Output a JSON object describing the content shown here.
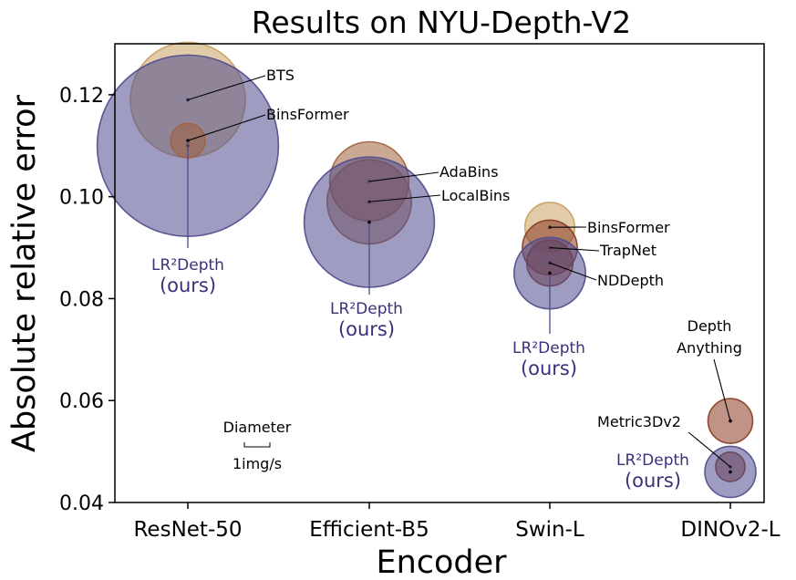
{
  "chart_data": {
    "type": "scatter",
    "title": "Results on NYU-Depth-V2",
    "xlabel": "Encoder",
    "ylabel": "Absolute relative error",
    "categories": [
      "ResNet-50",
      "Efficient-B5",
      "Swin-L",
      "DINOv2-L"
    ],
    "ylim": [
      0.04,
      0.13
    ],
    "yticks": [
      0.04,
      0.06,
      0.08,
      0.1,
      0.12
    ],
    "ytick_labels": [
      "0.04",
      "0.06",
      "0.08",
      "0.10",
      "0.12"
    ],
    "grid": false,
    "size_legend": {
      "title": "Diameter",
      "unit_label": "1img/s"
    },
    "colors": {
      "tan": "#c8a060",
      "brown": "#a0603c",
      "darkbrown": "#8a3a22",
      "ours": "#4e4a8c",
      "ours_text": "#3d2f7a"
    },
    "points": [
      {
        "label": "BTS",
        "encoder": "ResNet-50",
        "value": 0.119,
        "speed": 9.0,
        "color": "tan"
      },
      {
        "label": "LR²Depth",
        "label2": "(ours)",
        "encoder": "ResNet-50",
        "value": 0.11,
        "speed": 14.2,
        "color": "ours",
        "ours": true
      },
      {
        "label": "BinsFormer",
        "encoder": "ResNet-50",
        "value": 0.111,
        "speed": 2.7,
        "color": "brown"
      },
      {
        "label": "AdaBins",
        "encoder": "Efficient-B5",
        "value": 0.103,
        "speed": 6.2,
        "color": "brown"
      },
      {
        "label": "LocalBins",
        "encoder": "Efficient-B5",
        "value": 0.099,
        "speed": 6.6,
        "color": "brown"
      },
      {
        "label": "LR²Depth",
        "label2": "(ours)",
        "encoder": "Efficient-B5",
        "value": 0.095,
        "speed": 10.2,
        "color": "ours",
        "ours": true
      },
      {
        "label": "BinsFormer",
        "encoder": "Swin-L",
        "value": 0.094,
        "speed": 3.9,
        "color": "tan"
      },
      {
        "label": "TrapNet",
        "encoder": "Swin-L",
        "value": 0.09,
        "speed": 4.3,
        "color": "darkbrown"
      },
      {
        "label": "NDDepth",
        "encoder": "Swin-L",
        "value": 0.087,
        "speed": 3.6,
        "color": "darkbrown"
      },
      {
        "label": "LR²Depth",
        "label2": "(ours)",
        "encoder": "Swin-L",
        "value": 0.085,
        "speed": 5.6,
        "color": "ours",
        "ours": true
      },
      {
        "label": "Depth",
        "label2": "Anything",
        "encoder": "DINOv2-L",
        "value": 0.056,
        "speed": 3.5,
        "color": "darkbrown"
      },
      {
        "label": "Metric3Dv2",
        "encoder": "DINOv2-L",
        "value": 0.047,
        "speed": 2.3,
        "color": "darkbrown"
      },
      {
        "label": "LR²Depth",
        "label2": "(ours)",
        "encoder": "DINOv2-L",
        "value": 0.046,
        "speed": 4.0,
        "color": "ours",
        "ours": true
      }
    ]
  }
}
